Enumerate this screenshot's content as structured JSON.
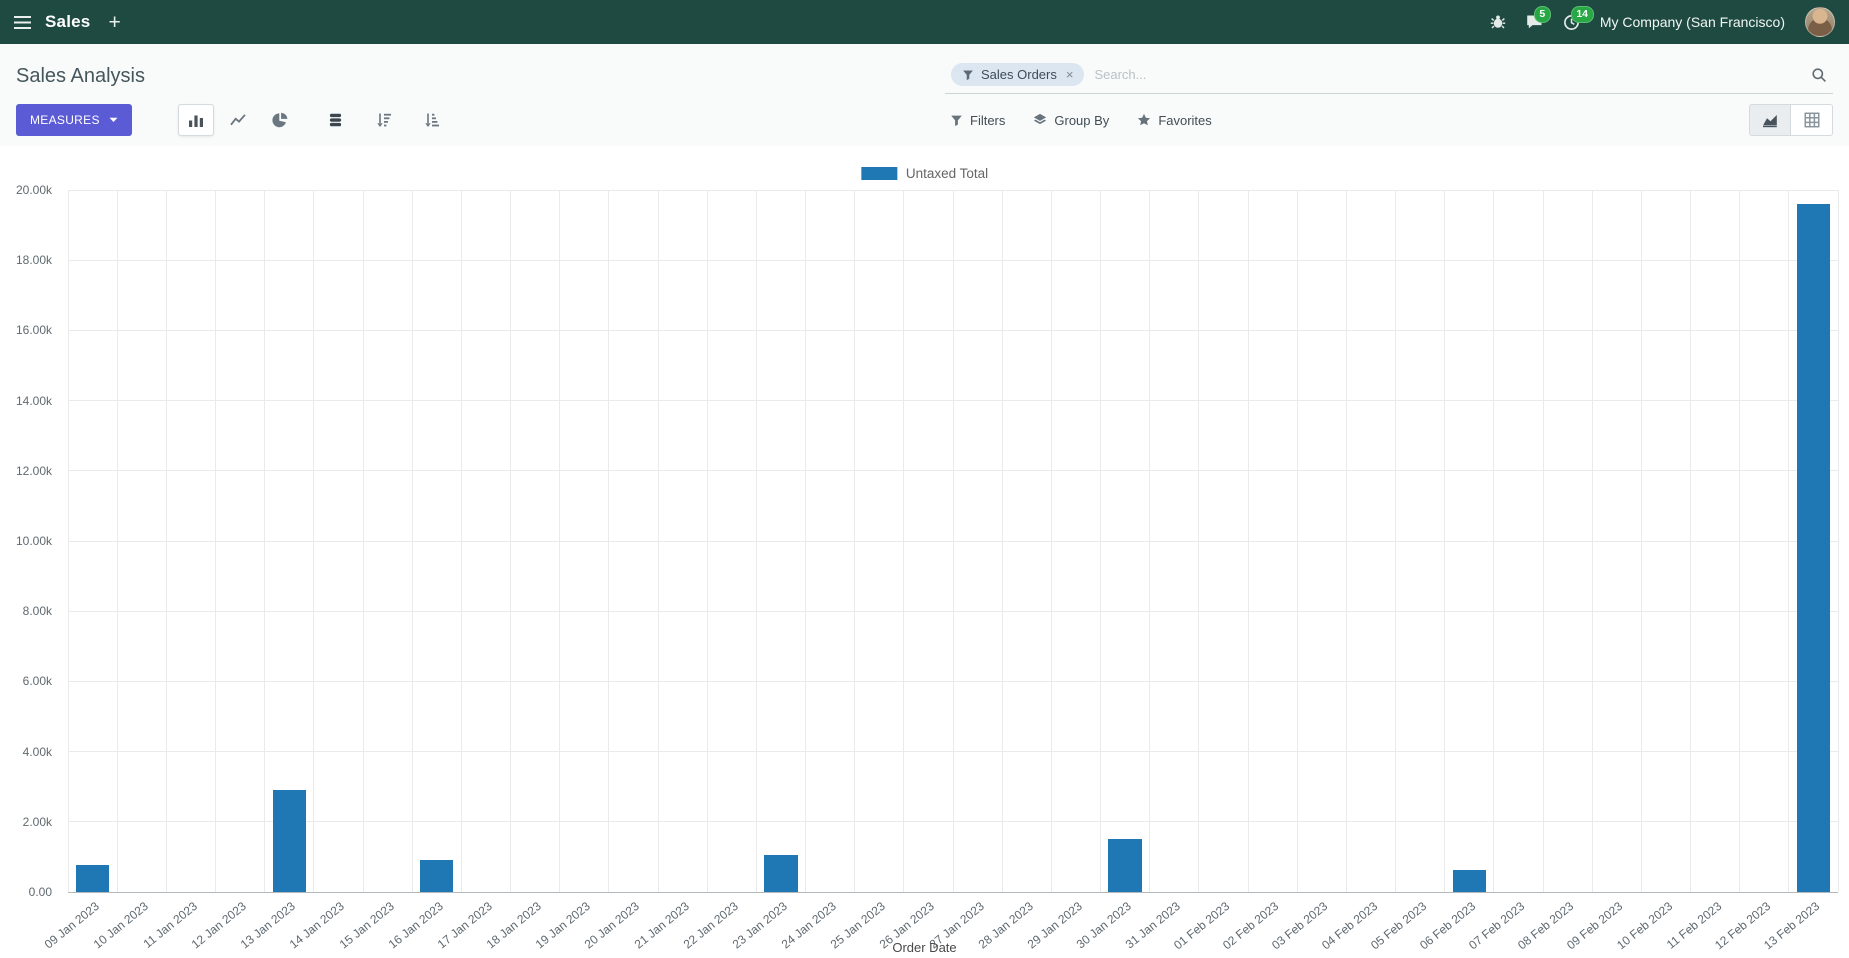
{
  "navbar": {
    "app_name": "Sales",
    "company_name": "My Company (San Francisco)",
    "chat_badge": "5",
    "activity_badge": "14"
  },
  "control_panel": {
    "title": "Sales Analysis",
    "search": {
      "facet_label": "Sales Orders",
      "remove_facet_label": "×",
      "placeholder": "Search..."
    },
    "buttons": {
      "measures": "MEASURES",
      "filters": "Filters",
      "group_by": "Group By",
      "favorites": "Favorites"
    }
  },
  "colors": {
    "navbar_bg": "#1e4a41",
    "primary_button": "#5c5bd6",
    "badge_green": "#28a745",
    "bar": "#1f77b4"
  },
  "chart_data": {
    "type": "bar",
    "title": "",
    "xlabel": "Order Date",
    "ylabel": "",
    "ylim": [
      0,
      20000
    ],
    "grid": true,
    "legend_position": "top",
    "ytick_labels": [
      "0.00",
      "2.00k",
      "4.00k",
      "6.00k",
      "8.00k",
      "10.00k",
      "12.00k",
      "14.00k",
      "16.00k",
      "18.00k",
      "20.00k"
    ],
    "categories": [
      "09 Jan 2023",
      "10 Jan 2023",
      "11 Jan 2023",
      "12 Jan 2023",
      "13 Jan 2023",
      "14 Jan 2023",
      "15 Jan 2023",
      "16 Jan 2023",
      "17 Jan 2023",
      "18 Jan 2023",
      "19 Jan 2023",
      "20 Jan 2023",
      "21 Jan 2023",
      "22 Jan 2023",
      "23 Jan 2023",
      "24 Jan 2023",
      "25 Jan 2023",
      "26 Jan 2023",
      "27 Jan 2023",
      "28 Jan 2023",
      "29 Jan 2023",
      "30 Jan 2023",
      "31 Jan 2023",
      "01 Feb 2023",
      "02 Feb 2023",
      "03 Feb 2023",
      "04 Feb 2023",
      "05 Feb 2023",
      "06 Feb 2023",
      "07 Feb 2023",
      "08 Feb 2023",
      "09 Feb 2023",
      "10 Feb 2023",
      "11 Feb 2023",
      "12 Feb 2023",
      "13 Feb 2023"
    ],
    "series": [
      {
        "name": "Untaxed Total",
        "color": "#1f77b4",
        "values": [
          780,
          0,
          0,
          0,
          2900,
          0,
          0,
          900,
          0,
          0,
          0,
          0,
          0,
          0,
          1050,
          0,
          0,
          0,
          0,
          0,
          0,
          1500,
          0,
          0,
          0,
          0,
          0,
          0,
          630,
          0,
          0,
          0,
          0,
          0,
          0,
          19600
        ]
      }
    ]
  }
}
